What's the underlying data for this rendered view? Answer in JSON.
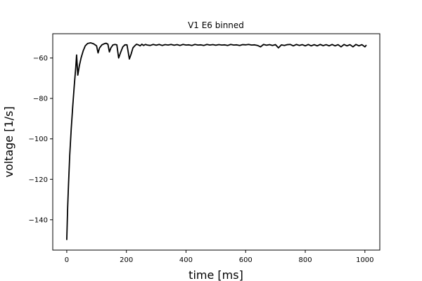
{
  "chart_data": {
    "type": "line",
    "title": "V1 E6 binned",
    "xlabel": "time [ms]",
    "ylabel": "voltage [1/s]",
    "xlim": [
      -47,
      1050
    ],
    "ylim": [
      -155,
      -48
    ],
    "xticks": [
      0,
      200,
      400,
      600,
      800,
      1000
    ],
    "yticks": [
      -140,
      -120,
      -100,
      -80,
      -60
    ],
    "grid": false,
    "series": [
      {
        "color": "#000000",
        "points": [
          [
            0,
            -150
          ],
          [
            3,
            -134
          ],
          [
            6,
            -122
          ],
          [
            10,
            -108
          ],
          [
            15,
            -95
          ],
          [
            20,
            -84
          ],
          [
            25,
            -74
          ],
          [
            30,
            -65
          ],
          [
            33,
            -58.5
          ],
          [
            37,
            -68.5
          ],
          [
            42,
            -64
          ],
          [
            48,
            -60
          ],
          [
            55,
            -56.5
          ],
          [
            62,
            -54
          ],
          [
            70,
            -52.8
          ],
          [
            80,
            -52.5
          ],
          [
            90,
            -53
          ],
          [
            100,
            -54
          ],
          [
            105,
            -57.5
          ],
          [
            110,
            -55
          ],
          [
            118,
            -53.5
          ],
          [
            125,
            -53
          ],
          [
            132,
            -52.7
          ],
          [
            138,
            -53.2
          ],
          [
            143,
            -57
          ],
          [
            148,
            -55
          ],
          [
            155,
            -53.5
          ],
          [
            162,
            -53.3
          ],
          [
            168,
            -53.5
          ],
          [
            174,
            -60
          ],
          [
            180,
            -57.5
          ],
          [
            188,
            -54.5
          ],
          [
            195,
            -53.5
          ],
          [
            202,
            -53.5
          ],
          [
            210,
            -60.5
          ],
          [
            216,
            -58
          ],
          [
            222,
            -55
          ],
          [
            228,
            -54
          ],
          [
            234,
            -53.2
          ],
          [
            240,
            -53.5
          ],
          [
            246,
            -54
          ],
          [
            252,
            -53.2
          ],
          [
            258,
            -53.8
          ],
          [
            264,
            -53.3
          ],
          [
            270,
            -53.6
          ],
          [
            280,
            -53.8
          ],
          [
            290,
            -53.3
          ],
          [
            300,
            -53.7
          ],
          [
            310,
            -53.3
          ],
          [
            320,
            -53.8
          ],
          [
            330,
            -53.4
          ],
          [
            340,
            -53.6
          ],
          [
            350,
            -53.3
          ],
          [
            360,
            -53.7
          ],
          [
            370,
            -53.4
          ],
          [
            380,
            -53.8
          ],
          [
            390,
            -53.3
          ],
          [
            400,
            -53.6
          ],
          [
            410,
            -53.5
          ],
          [
            420,
            -53.8
          ],
          [
            430,
            -53.3
          ],
          [
            440,
            -53.6
          ],
          [
            450,
            -53.5
          ],
          [
            460,
            -53.8
          ],
          [
            470,
            -53.3
          ],
          [
            480,
            -53.6
          ],
          [
            490,
            -53.4
          ],
          [
            500,
            -53.7
          ],
          [
            510,
            -53.4
          ],
          [
            520,
            -53.6
          ],
          [
            530,
            -53.5
          ],
          [
            540,
            -53.8
          ],
          [
            550,
            -53.3
          ],
          [
            560,
            -53.6
          ],
          [
            570,
            -53.5
          ],
          [
            580,
            -53.8
          ],
          [
            590,
            -53.4
          ],
          [
            600,
            -53.5
          ],
          [
            610,
            -53.3
          ],
          [
            620,
            -53.6
          ],
          [
            630,
            -53.5
          ],
          [
            640,
            -53.8
          ],
          [
            650,
            -54.5
          ],
          [
            660,
            -53.3
          ],
          [
            670,
            -53.7
          ],
          [
            680,
            -53.4
          ],
          [
            690,
            -53.8
          ],
          [
            700,
            -53.4
          ],
          [
            710,
            -55
          ],
          [
            720,
            -53.5
          ],
          [
            730,
            -53.8
          ],
          [
            740,
            -53.4
          ],
          [
            750,
            -53.3
          ],
          [
            760,
            -54
          ],
          [
            770,
            -53.3
          ],
          [
            780,
            -53.8
          ],
          [
            790,
            -53.4
          ],
          [
            800,
            -54
          ],
          [
            810,
            -53.3
          ],
          [
            820,
            -54
          ],
          [
            830,
            -53.4
          ],
          [
            840,
            -54
          ],
          [
            850,
            -53.3
          ],
          [
            860,
            -53.9
          ],
          [
            870,
            -53.4
          ],
          [
            880,
            -54
          ],
          [
            890,
            -53.3
          ],
          [
            900,
            -54
          ],
          [
            910,
            -53.4
          ],
          [
            920,
            -54.5
          ],
          [
            930,
            -53.3
          ],
          [
            940,
            -54
          ],
          [
            950,
            -53.4
          ],
          [
            960,
            -54.5
          ],
          [
            970,
            -53.3
          ],
          [
            980,
            -54
          ],
          [
            990,
            -53.4
          ],
          [
            1000,
            -54.5
          ],
          [
            1005,
            -53.6
          ]
        ]
      }
    ]
  }
}
